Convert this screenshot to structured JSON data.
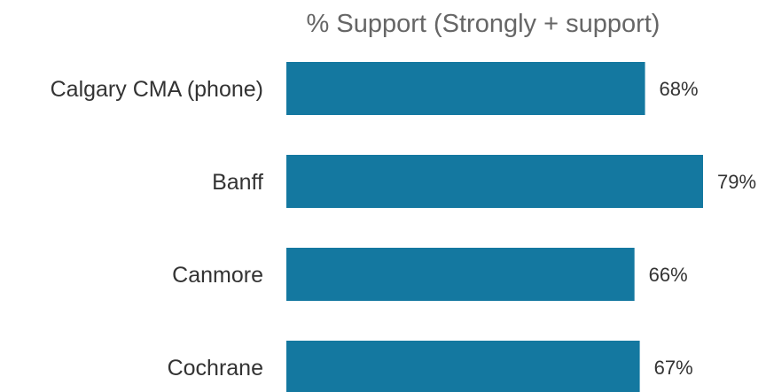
{
  "chart_data": {
    "type": "bar",
    "orientation": "horizontal",
    "title": "% Support (Strongly + support)",
    "categories": [
      "Calgary CMA (phone)",
      "Banff",
      "Canmore",
      "Cochrane"
    ],
    "values": [
      68,
      79,
      66,
      67
    ],
    "value_labels": [
      "68%",
      "79%",
      "66%",
      "67%"
    ],
    "xlim": [
      0,
      100
    ],
    "grid": false,
    "legend": "none",
    "bar_color": "#1478a0"
  }
}
